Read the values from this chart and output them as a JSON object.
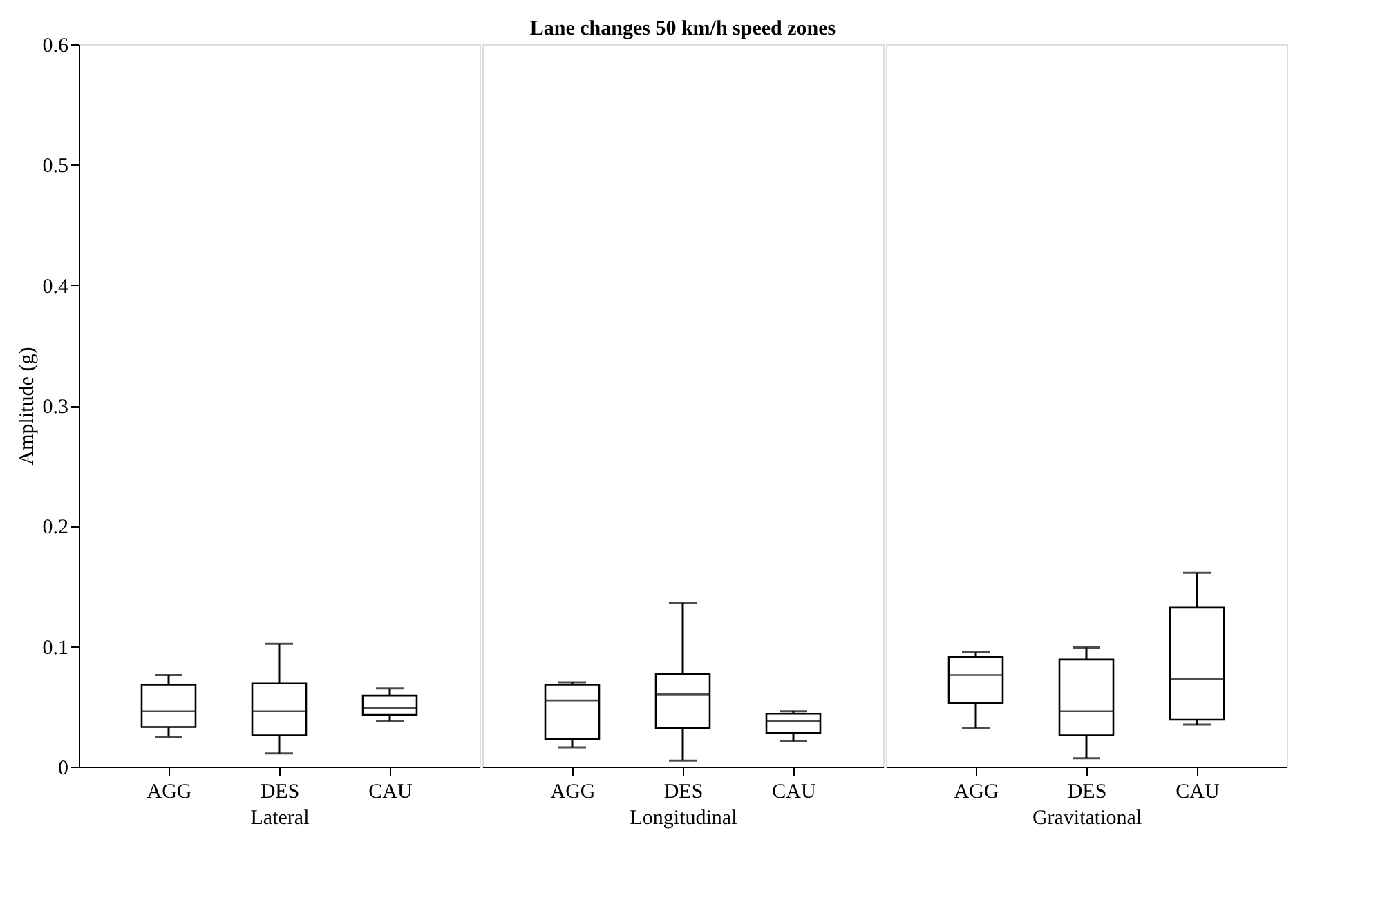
{
  "chart_data": [
    {
      "type": "box",
      "ylabel": "Amplitude (g)",
      "xlabel": "Lateral",
      "categories": [
        "AGG",
        "DES",
        "CAU"
      ],
      "ylim": [
        0,
        0.6
      ],
      "yticks": [
        0,
        0.1,
        0.2,
        0.3,
        0.4,
        0.5,
        0.6
      ],
      "boxes": [
        {
          "low": 0.025,
          "q1": 0.033,
          "median": 0.046,
          "q3": 0.068,
          "high": 0.076
        },
        {
          "low": 0.011,
          "q1": 0.026,
          "median": 0.046,
          "q3": 0.069,
          "high": 0.102
        },
        {
          "low": 0.038,
          "q1": 0.043,
          "median": 0.049,
          "q3": 0.059,
          "high": 0.065
        }
      ]
    },
    {
      "type": "box",
      "title": "Lane changes 50 km/h speed zones",
      "xlabel": "Longitudinal",
      "categories": [
        "AGG",
        "DES",
        "CAU"
      ],
      "ylim": [
        0,
        0.6
      ],
      "tick_labels": "x",
      "boxes": [
        {
          "low": 0.016,
          "q1": 0.023,
          "median": 0.055,
          "q3": 0.068,
          "high": 0.07
        },
        {
          "low": 0.005,
          "q1": 0.032,
          "median": 0.06,
          "q3": 0.077,
          "high": 0.136
        },
        {
          "low": 0.021,
          "q1": 0.028,
          "median": 0.038,
          "q3": 0.044,
          "high": 0.046
        }
      ]
    },
    {
      "type": "box",
      "xlabel": "Gravitational",
      "categories": [
        "AGG",
        "DES",
        "CAU"
      ],
      "ylim": [
        0,
        0.6
      ],
      "tick_labels": "x",
      "boxes": [
        {
          "low": 0.032,
          "q1": 0.053,
          "median": 0.076,
          "q3": 0.091,
          "high": 0.095
        },
        {
          "low": 0.007,
          "q1": 0.026,
          "median": 0.046,
          "q3": 0.089,
          "high": 0.099
        },
        {
          "low": 0.035,
          "q1": 0.039,
          "median": 0.073,
          "q3": 0.132,
          "high": 0.161
        }
      ]
    }
  ]
}
